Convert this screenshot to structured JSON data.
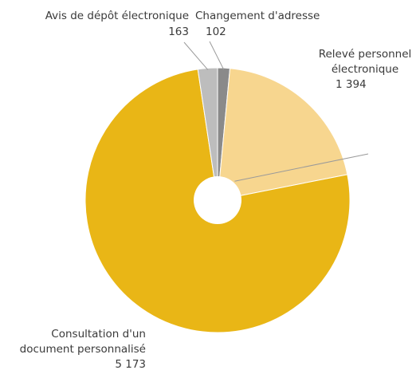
{
  "chart_data": {
    "type": "pie",
    "donut": true,
    "title": "",
    "slices": [
      {
        "name_lines": [
          "Relevé personnel",
          "électronique"
        ],
        "value": 1394,
        "value_label": "1 394",
        "color": "#f7d68f"
      },
      {
        "name_lines": [
          "Consultation d'un",
          "document personnalisé"
        ],
        "value": 5173,
        "value_label": "5 173",
        "color": "#e9b616"
      },
      {
        "name_lines": [
          "Avis de dépôt électronique"
        ],
        "value": 163,
        "value_label": "163",
        "color": "#bdbdbd"
      },
      {
        "name_lines": [
          "Changement d'adresse"
        ],
        "value": 102,
        "value_label": "102",
        "color": "#8a8a8a"
      }
    ],
    "start_slice_order": [
      3,
      0,
      1,
      2
    ],
    "legend": "none",
    "leader_line_color": "#9a9a9a"
  }
}
